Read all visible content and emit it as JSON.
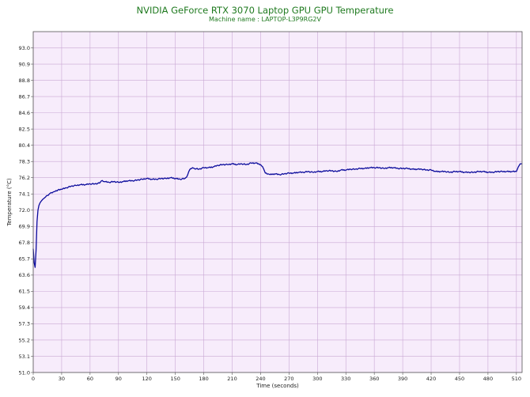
{
  "chart_data": {
    "type": "line",
    "title": "NVIDIA GeForce RTX 3070 Laptop GPU GPU Temperature",
    "subtitle": "Machine name : LAPTOP-L3P9RG2V",
    "xlabel": "Time (seconds)",
    "ylabel": "Temperature (°C)",
    "xlim": [
      0,
      516
    ],
    "ylim": [
      51.0,
      95.1
    ],
    "xticks": [
      "0",
      "30",
      "60",
      "90",
      "120",
      "150",
      "180",
      "210",
      "240",
      "270",
      "300",
      "330",
      "360",
      "390",
      "420",
      "450",
      "480",
      "510"
    ],
    "xtick_values": [
      0,
      30,
      60,
      90,
      120,
      150,
      180,
      210,
      240,
      270,
      300,
      330,
      360,
      390,
      420,
      450,
      480,
      510
    ],
    "yticks": [
      "51.0",
      "53.1",
      "55.2",
      "57.3",
      "59.4",
      "61.5",
      "63.6",
      "65.7",
      "67.8",
      "69.9",
      "72.0",
      "74.1",
      "76.2",
      "78.3",
      "80.4",
      "82.5",
      "84.6",
      "86.7",
      "88.8",
      "90.9",
      "93.0"
    ],
    "ytick_values": [
      51.0,
      53.1,
      55.2,
      57.3,
      59.4,
      61.5,
      63.6,
      65.7,
      67.8,
      69.9,
      72.0,
      74.1,
      76.2,
      78.3,
      80.4,
      82.5,
      84.6,
      86.7,
      88.8,
      90.9,
      93.0
    ],
    "grid": true,
    "colors": {
      "line": "#0b0b9c",
      "plot_bg": "#f7ecfb",
      "grid": "#c9a8d4",
      "title": "#1f7a1f"
    },
    "series": [
      {
        "x": [
          0,
          1,
          2,
          3,
          4,
          5,
          6,
          7,
          8,
          10,
          12,
          15,
          18,
          22,
          26,
          30,
          35,
          40,
          45,
          50,
          55,
          60,
          65,
          70,
          72,
          75,
          80,
          85,
          90,
          95,
          100,
          105,
          110,
          115,
          120,
          125,
          130,
          135,
          140,
          145,
          150,
          155,
          160,
          162,
          165,
          168,
          170,
          175,
          180,
          185,
          190,
          195,
          200,
          205,
          210,
          215,
          220,
          225,
          230,
          235,
          240,
          243,
          245,
          248,
          250,
          255,
          260,
          265,
          270,
          275,
          280,
          285,
          290,
          295,
          300,
          305,
          310,
          315,
          320,
          325,
          330,
          335,
          340,
          345,
          350,
          355,
          360,
          365,
          370,
          375,
          380,
          385,
          390,
          395,
          400,
          405,
          410,
          415,
          420,
          425,
          430,
          435,
          440,
          445,
          450,
          455,
          460,
          465,
          470,
          475,
          480,
          485,
          490,
          495,
          500,
          505,
          510,
          512,
          514,
          516
        ],
        "y": [
          67.0,
          65.2,
          64.6,
          66.8,
          70.5,
          72.0,
          72.6,
          72.9,
          73.1,
          73.4,
          73.6,
          73.9,
          74.2,
          74.4,
          74.6,
          74.7,
          74.9,
          75.1,
          75.2,
          75.3,
          75.3,
          75.4,
          75.4,
          75.5,
          75.8,
          75.7,
          75.6,
          75.7,
          75.6,
          75.7,
          75.8,
          75.8,
          75.9,
          76.0,
          76.1,
          76.0,
          76.0,
          76.1,
          76.1,
          76.2,
          76.1,
          76.0,
          76.1,
          76.3,
          77.2,
          77.5,
          77.4,
          77.3,
          77.5,
          77.5,
          77.6,
          77.8,
          77.9,
          77.9,
          78.0,
          77.9,
          78.0,
          77.9,
          78.1,
          78.1,
          77.9,
          77.4,
          76.8,
          76.7,
          76.6,
          76.7,
          76.6,
          76.7,
          76.8,
          76.8,
          76.9,
          76.9,
          77.0,
          76.9,
          77.0,
          77.0,
          77.1,
          77.1,
          77.0,
          77.2,
          77.2,
          77.3,
          77.3,
          77.4,
          77.4,
          77.5,
          77.5,
          77.5,
          77.4,
          77.5,
          77.5,
          77.4,
          77.4,
          77.4,
          77.3,
          77.3,
          77.3,
          77.2,
          77.2,
          77.0,
          77.0,
          77.0,
          76.9,
          77.0,
          77.0,
          76.9,
          76.9,
          76.9,
          77.0,
          77.0,
          76.9,
          76.9,
          77.0,
          77.0,
          77.0,
          77.0,
          77.0,
          77.6,
          78.0,
          78.0
        ]
      }
    ]
  }
}
